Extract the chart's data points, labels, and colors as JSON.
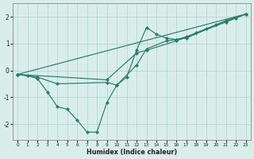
{
  "xlabel": "Humidex (Indice chaleur)",
  "xlim": [
    -0.5,
    23.5
  ],
  "ylim": [
    -2.6,
    2.5
  ],
  "yticks": [
    -2,
    -1,
    0,
    1,
    2
  ],
  "xticks": [
    0,
    1,
    2,
    3,
    4,
    5,
    6,
    7,
    8,
    9,
    10,
    11,
    12,
    13,
    14,
    15,
    16,
    17,
    18,
    19,
    20,
    21,
    22,
    23
  ],
  "background_color": "#d9eeea",
  "grid_color": "#aed4cc",
  "line_color": "#2a7a6e",
  "line1_x": [
    0,
    1,
    2,
    3,
    4,
    5,
    6,
    7,
    8,
    9,
    10,
    11,
    12,
    13,
    14,
    15,
    16,
    17,
    18,
    19,
    20,
    21,
    22,
    23
  ],
  "line1_y": [
    -0.15,
    -0.2,
    -0.3,
    -0.8,
    -1.35,
    -1.45,
    -1.85,
    -2.3,
    -2.3,
    -1.2,
    -0.55,
    -0.25,
    0.75,
    1.6,
    1.35,
    1.2,
    1.15,
    1.25,
    1.4,
    1.55,
    1.7,
    1.85,
    1.95,
    2.1
  ],
  "line2_x": [
    0,
    2,
    4,
    9,
    10,
    12,
    13,
    15,
    16,
    17,
    21,
    23
  ],
  "line2_y": [
    -0.15,
    -0.25,
    -0.5,
    -0.45,
    -0.55,
    0.2,
    0.8,
    1.1,
    1.15,
    1.2,
    1.85,
    2.1
  ],
  "line3_x": [
    0,
    23
  ],
  "line3_y": [
    -0.15,
    2.1
  ],
  "line4_x": [
    0,
    9,
    12,
    13,
    16,
    21,
    23
  ],
  "line4_y": [
    -0.15,
    -0.35,
    0.65,
    0.75,
    1.1,
    1.8,
    2.1
  ]
}
